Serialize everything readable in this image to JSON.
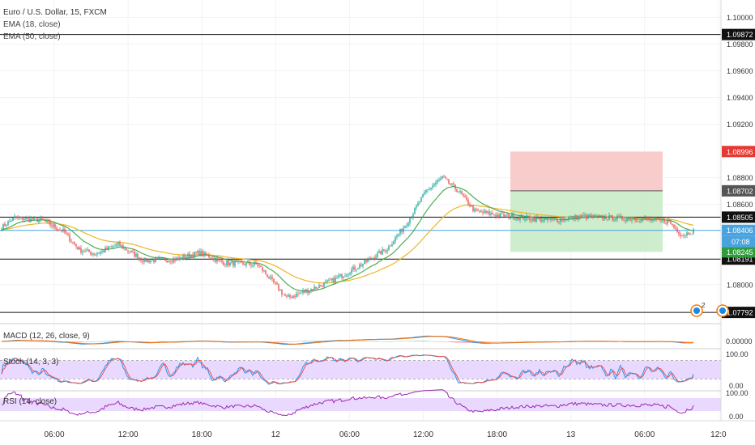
{
  "header": {
    "symbol": "Euro / U.S. Dollar, 15, FXCM",
    "ema_fast": "EMA (18, close)",
    "ema_slow": "EMA (50, close)"
  },
  "indicators": {
    "macd": {
      "label": "MACD (12, 26, close, 9)",
      "axis": [
        "0.00000"
      ]
    },
    "stoch": {
      "label": "Stoch (14, 3, 3)",
      "axis": [
        "100.00",
        "0.00"
      ]
    },
    "rsi": {
      "label": "RSI (14, close)",
      "axis": [
        "100.00",
        "0.00"
      ]
    }
  },
  "countdown": "07:08",
  "event_badges": [
    "2"
  ],
  "colors": {
    "up": "#26a69a",
    "down": "#ef5350",
    "ema_fast": "#4caf50",
    "ema_slow": "#f0b429",
    "macd_line": "#2196f3",
    "signal_line": "#ff6d00",
    "stoch_k": "#2196f3",
    "stoch_d": "#ef5350",
    "rsi": "#9c27b0",
    "osc_band": "#e8d5ff",
    "stop_zone": "#f8c6c6",
    "target_zone": "#c8ebc8",
    "current_price": "#4aa3df"
  },
  "chart_data": {
    "type": "candlestick",
    "price_axis": {
      "min": 1.0772,
      "max": 1.101,
      "ticks": [
        "1.10000",
        "1.09800",
        "1.09600",
        "1.09400",
        "1.09200",
        "1.08800",
        "1.08600",
        "1.08000"
      ]
    },
    "time_axis": [
      "06:00",
      "12:00",
      "18:00",
      "12",
      "06:00",
      "12:00",
      "18:00",
      "13",
      "06:00",
      "12:0"
    ],
    "horizontal_lines": [
      {
        "label": "1.09872",
        "value": 1.09872
      },
      {
        "label": "1.08505",
        "value": 1.08505
      },
      {
        "label": "1.08191",
        "value": 1.08191
      },
      {
        "label": "1.07792",
        "value": 1.07792
      }
    ],
    "current_price": {
      "label": "1.08406",
      "value": 1.08406
    },
    "position": {
      "stop": {
        "label": "1.08996",
        "value": 1.08996
      },
      "entry": {
        "label": "1.08702",
        "value": 1.08702
      },
      "target": {
        "label": "1.08245",
        "value": 1.08245
      }
    },
    "price_keypoints": [
      [
        0,
        1.0843
      ],
      [
        8,
        1.085
      ],
      [
        25,
        1.0848
      ],
      [
        38,
        1.084
      ],
      [
        48,
        1.0826
      ],
      [
        58,
        1.0823
      ],
      [
        72,
        1.083
      ],
      [
        88,
        1.0818
      ],
      [
        108,
        1.0819
      ],
      [
        122,
        1.0824
      ],
      [
        138,
        1.0816
      ],
      [
        158,
        1.0815
      ],
      [
        176,
        1.079
      ],
      [
        190,
        1.0796
      ],
      [
        204,
        1.0803
      ],
      [
        222,
        1.0815
      ],
      [
        238,
        1.0827
      ],
      [
        250,
        1.0846
      ],
      [
        262,
        1.087
      ],
      [
        272,
        1.088
      ],
      [
        282,
        1.087
      ],
      [
        292,
        1.0855
      ],
      [
        306,
        1.0852
      ],
      [
        322,
        1.085
      ],
      [
        340,
        1.0848
      ],
      [
        358,
        1.0851
      ],
      [
        376,
        1.085
      ],
      [
        394,
        1.0849
      ],
      [
        412,
        1.0847
      ],
      [
        420,
        1.0837
      ],
      [
        426,
        1.084
      ]
    ]
  }
}
